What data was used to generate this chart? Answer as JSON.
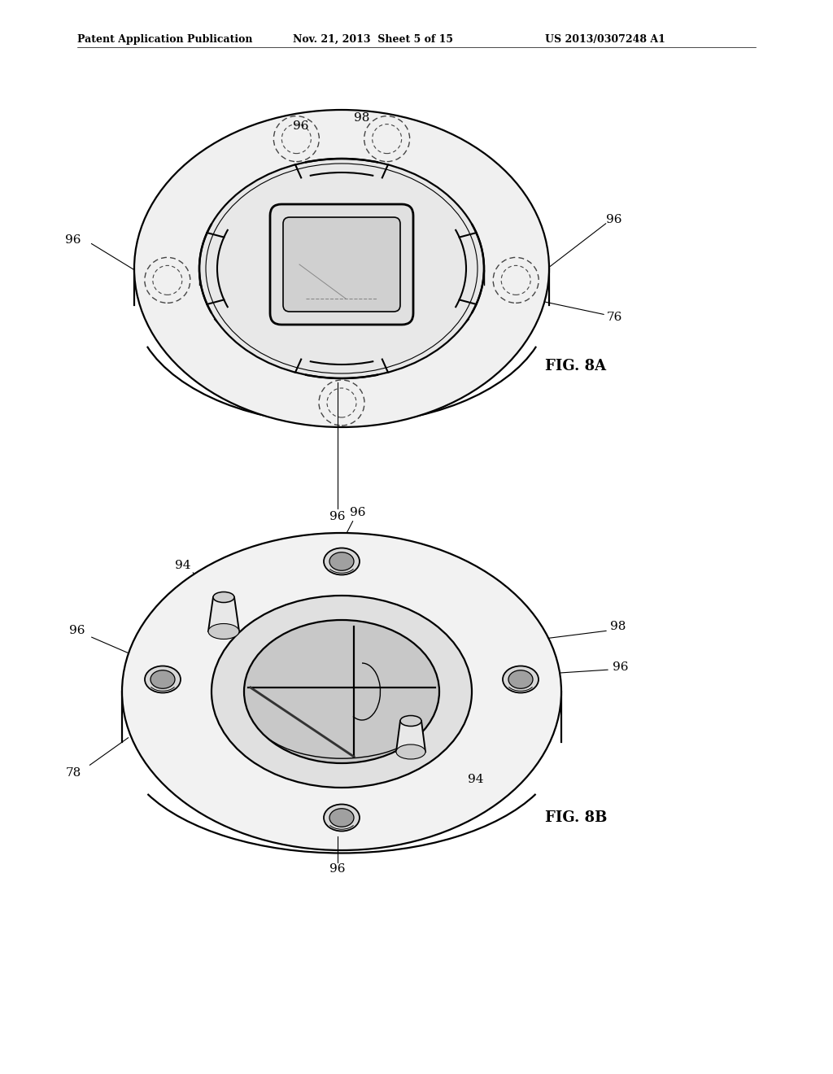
{
  "background_color": "#ffffff",
  "header_left": "Patent Application Publication",
  "header_mid": "Nov. 21, 2013  Sheet 5 of 15",
  "header_right": "US 2013/0307248 A1",
  "fig8a_label": "FIG. 8A",
  "fig8b_label": "FIG. 8B",
  "line_color": "#000000",
  "gray_light": "#cccccc",
  "gray_mid": "#999999",
  "gray_dark": "#666666"
}
